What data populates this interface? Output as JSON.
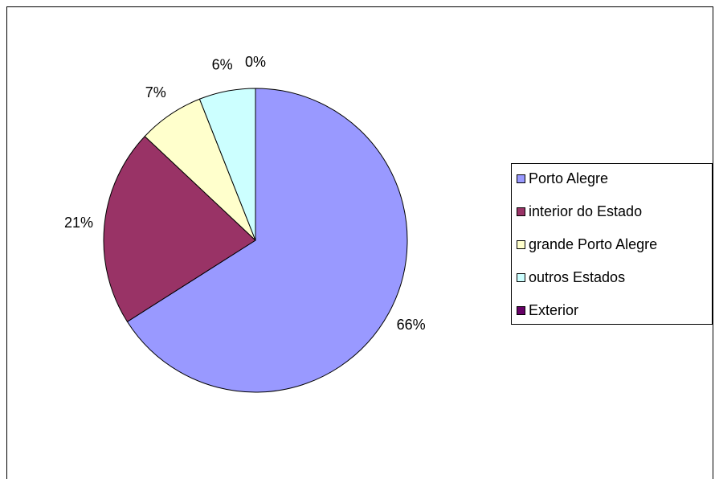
{
  "chart_data": {
    "type": "pie",
    "categories": [
      "Porto Alegre",
      "interior do Estado",
      "grande Porto Alegre",
      "outros Estados",
      "Exterior"
    ],
    "values": [
      66,
      21,
      7,
      6,
      0
    ],
    "value_labels": [
      "66%",
      "21%",
      "7%",
      "6%",
      "0%"
    ],
    "colors": [
      "#9999ff",
      "#993366",
      "#ffffcc",
      "#ccffff",
      "#660066"
    ],
    "legend": "right"
  }
}
